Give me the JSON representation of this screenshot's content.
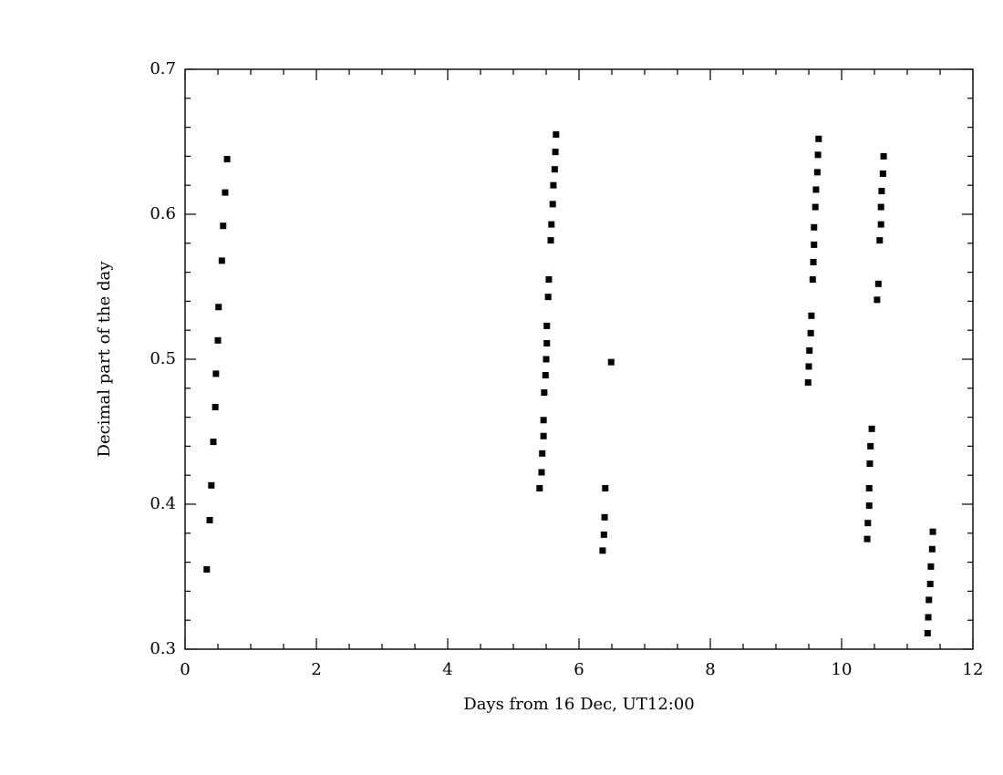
{
  "chart_data": {
    "type": "scatter",
    "x_label": "Days from 16 Dec, UT12:00",
    "y_label": "Decimal part of the day",
    "color": "#000000",
    "xlim": [
      0,
      12
    ],
    "xticks": [
      0,
      2,
      4,
      6,
      8,
      10,
      12
    ],
    "ylim": [
      0.3,
      0.7
    ],
    "yticks": [
      0.3,
      0.4,
      0.5,
      0.6,
      0.7
    ],
    "grid": false,
    "x": [
      0.33,
      0.375,
      0.4,
      0.43,
      0.46,
      0.47,
      0.5,
      0.51,
      0.56,
      0.58,
      0.61,
      0.64,
      5.4,
      5.43,
      5.44,
      5.46,
      5.46,
      5.47,
      5.49,
      5.5,
      5.51,
      5.51,
      5.53,
      5.54,
      5.57,
      5.58,
      5.6,
      5.61,
      5.63,
      5.64,
      5.65,
      6.36,
      6.38,
      6.39,
      6.4,
      6.49,
      9.49,
      9.5,
      9.51,
      9.53,
      9.54,
      9.56,
      9.57,
      9.58,
      9.58,
      9.6,
      9.61,
      9.63,
      9.64,
      9.65,
      10.39,
      10.4,
      10.42,
      10.42,
      10.43,
      10.44,
      10.46,
      10.54,
      10.56,
      10.58,
      10.6,
      10.6,
      10.61,
      10.63,
      10.64,
      11.31,
      11.32,
      11.33,
      11.35,
      11.36,
      11.38,
      11.39
    ],
    "values": [
      0.355,
      0.389,
      0.413,
      0.443,
      0.467,
      0.49,
      0.513,
      0.536,
      0.568,
      0.592,
      0.615,
      0.638,
      0.411,
      0.422,
      0.435,
      0.447,
      0.458,
      0.477,
      0.489,
      0.5,
      0.511,
      0.523,
      0.543,
      0.555,
      0.582,
      0.593,
      0.607,
      0.62,
      0.631,
      0.643,
      0.655,
      0.368,
      0.379,
      0.391,
      0.411,
      0.498,
      0.484,
      0.495,
      0.506,
      0.518,
      0.53,
      0.555,
      0.567,
      0.579,
      0.591,
      0.605,
      0.617,
      0.629,
      0.641,
      0.652,
      0.376,
      0.387,
      0.399,
      0.411,
      0.428,
      0.44,
      0.452,
      0.541,
      0.552,
      0.582,
      0.593,
      0.605,
      0.616,
      0.628,
      0.64,
      0.311,
      0.322,
      0.334,
      0.345,
      0.357,
      0.369,
      0.381
    ]
  }
}
